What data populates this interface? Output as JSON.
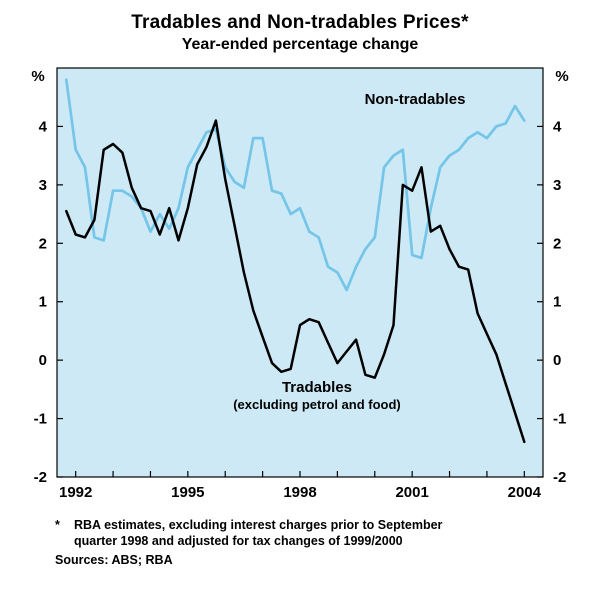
{
  "title": "Tradables and Non-tradables Prices*",
  "subtitle": "Year-ended percentage change",
  "footnote": {
    "marker": "*",
    "line1": "RBA estimates, excluding interest charges prior to September",
    "line2": "quarter 1998 and adjusted for tax changes of 1999/2000",
    "sources": "Sources: ABS; RBA"
  },
  "chart_data": {
    "type": "line",
    "title": "Tradables and Non-tradables Prices*",
    "subtitle": "Year-ended percentage change",
    "unit": "%",
    "xlim": [
      1991.5,
      2004.5
    ],
    "ylim": [
      -2,
      5
    ],
    "grid": false,
    "plot_bg": "#cde9f5",
    "yticks": [
      -2,
      -1,
      0,
      1,
      2,
      3,
      4
    ],
    "ytick_labels": [
      "-2",
      "-1",
      "0",
      "1",
      "2",
      "3",
      "4"
    ],
    "xticks_minor": [
      1992,
      1993,
      1994,
      1995,
      1996,
      1997,
      1998,
      1999,
      2000,
      2001,
      2002,
      2003,
      2004
    ],
    "xticks_labeled": [
      1992,
      1995,
      1998,
      2001,
      2004
    ],
    "legend_position": "in-plot annotations",
    "x": [
      1991.75,
      1992.0,
      1992.25,
      1992.5,
      1992.75,
      1993.0,
      1993.25,
      1993.5,
      1993.75,
      1994.0,
      1994.25,
      1994.5,
      1994.75,
      1995.0,
      1995.25,
      1995.5,
      1995.75,
      1996.0,
      1996.25,
      1996.5,
      1996.75,
      1997.0,
      1997.25,
      1997.5,
      1997.75,
      1998.0,
      1998.25,
      1998.5,
      1998.75,
      1999.0,
      1999.25,
      1999.5,
      1999.75,
      2000.0,
      2000.25,
      2000.5,
      2000.75,
      2001.0,
      2001.25,
      2001.5,
      2001.75,
      2002.0,
      2002.25,
      2002.5,
      2002.75,
      2003.0,
      2003.25,
      2003.5,
      2003.75,
      2004.0
    ],
    "series": [
      {
        "name": "Non-tradables",
        "color": "#74c5e8",
        "stroke_width": 2.7,
        "values": [
          4.8,
          3.6,
          3.3,
          2.1,
          2.05,
          2.9,
          2.9,
          2.8,
          2.6,
          2.2,
          2.5,
          2.25,
          2.6,
          3.3,
          3.6,
          3.9,
          3.95,
          3.3,
          3.05,
          2.95,
          3.8,
          3.8,
          2.9,
          2.85,
          2.5,
          2.6,
          2.2,
          2.1,
          1.6,
          1.5,
          1.2,
          1.6,
          1.9,
          2.1,
          3.3,
          3.5,
          3.6,
          1.8,
          1.75,
          2.6,
          3.3,
          3.5,
          3.6,
          3.8,
          3.9,
          3.8,
          4.0,
          4.05,
          4.35,
          4.1
        ]
      },
      {
        "name": "Tradables",
        "color": "#000000",
        "stroke_width": 2.5,
        "values": [
          2.55,
          2.15,
          2.1,
          2.4,
          3.6,
          3.7,
          3.55,
          2.95,
          2.6,
          2.55,
          2.15,
          2.6,
          2.05,
          2.6,
          3.35,
          3.65,
          4.1,
          3.1,
          2.3,
          1.5,
          0.85,
          0.4,
          -0.05,
          -0.2,
          -0.15,
          0.6,
          0.7,
          0.65,
          0.3,
          -0.05,
          0.15,
          0.35,
          -0.25,
          -0.3,
          0.1,
          0.6,
          3.0,
          2.9,
          3.3,
          2.2,
          2.3,
          1.9,
          1.6,
          1.55,
          0.8,
          0.45,
          0.1,
          -0.4,
          -0.9,
          -1.4
        ]
      }
    ],
    "annotations": {
      "non_tradables_label": "Non-tradables",
      "tradables_label": "Tradables",
      "tradables_sublabel": "(excluding petrol and food)"
    }
  }
}
